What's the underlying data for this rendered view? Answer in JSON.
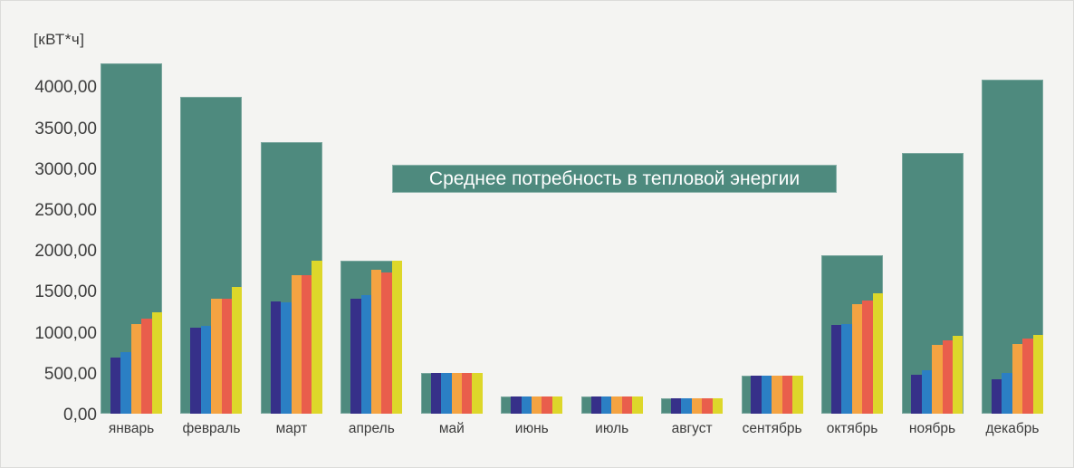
{
  "background_color": "#f4f4f2",
  "title": {
    "text": "Среднее потребность в тепловой энергии",
    "bg_color": "#4e8a7e",
    "text_color": "#ffffff"
  },
  "axis": {
    "unit_label": "[кВТ*ч]",
    "tick_labels": [
      "4000,00",
      "3500,00",
      "3000,00",
      "2500,00",
      "2000,00",
      "1500,00",
      "1000,00",
      "500,00",
      "0,00"
    ],
    "tick_values": [
      4000,
      3500,
      3000,
      2500,
      2000,
      1500,
      1000,
      500,
      0
    ]
  },
  "chart_data": {
    "type": "bar",
    "title": "Среднее потребность в тепловой энергии",
    "xlabel": "",
    "ylabel": "[кВТ*ч]",
    "ylim": [
      0,
      4500
    ],
    "ytick_step": 500,
    "grid": false,
    "legend_position": "none",
    "categories": [
      "январь",
      "февраль",
      "март",
      "апрель",
      "май",
      "июнь",
      "июль",
      "август",
      "сентябрь",
      "октябрь",
      "ноябрь",
      "декабрь"
    ],
    "series": [
      {
        "name": "фон-среднее-теал",
        "role": "background",
        "color": "#4e8a7e",
        "values": [
          4280,
          3870,
          3320,
          1870,
          500,
          210,
          210,
          190,
          460,
          1940,
          3190,
          4080
        ]
      },
      {
        "name": "серия-тёмно-синяя",
        "color": "#363089",
        "values": [
          690,
          1050,
          1370,
          1410,
          500,
          210,
          210,
          190,
          460,
          1080,
          480,
          420
        ]
      },
      {
        "name": "серия-синяя",
        "color": "#2b7fc4",
        "values": [
          750,
          1070,
          1360,
          1450,
          500,
          210,
          210,
          190,
          460,
          1090,
          530,
          500
        ]
      },
      {
        "name": "серия-оранжевая",
        "color": "#f4a342",
        "values": [
          1100,
          1400,
          1690,
          1760,
          500,
          210,
          210,
          190,
          460,
          1340,
          840,
          850
        ]
      },
      {
        "name": "серия-красная",
        "color": "#e95e4c",
        "values": [
          1160,
          1410,
          1690,
          1730,
          500,
          210,
          210,
          190,
          460,
          1380,
          900,
          920
        ]
      },
      {
        "name": "серия-жёлтая",
        "color": "#ddd72a",
        "values": [
          1240,
          1550,
          1870,
          1870,
          500,
          210,
          210,
          190,
          460,
          1470,
          950,
          960
        ]
      }
    ]
  }
}
